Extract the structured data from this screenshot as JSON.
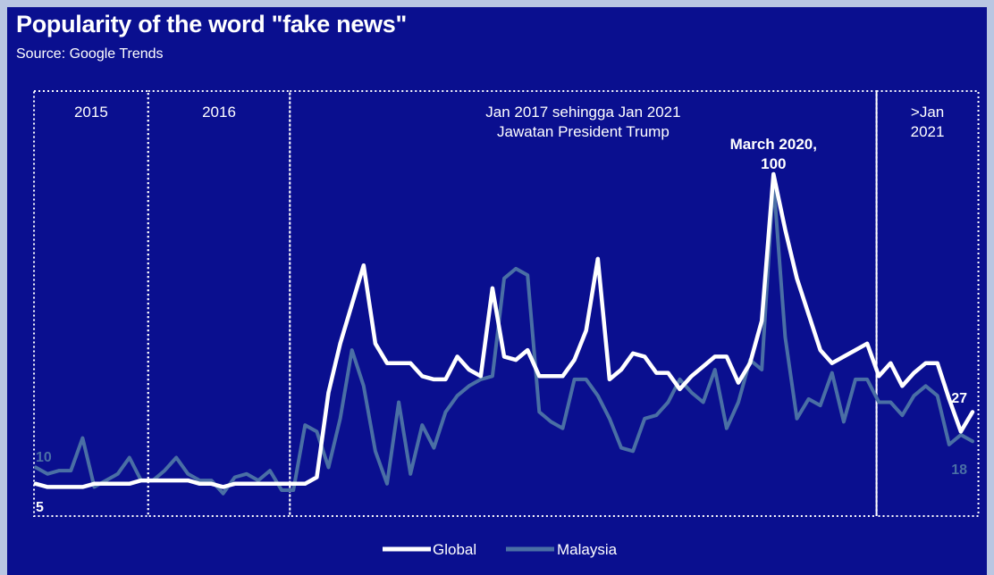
{
  "title": "Popularity of the word \"fake news\"",
  "subtitle": "Source: Google Trends",
  "colors": {
    "background": "#0a0f8f",
    "outer": "#b9c6e2",
    "global": "#ffffff",
    "malaysia": "#4a6fa5"
  },
  "periods": [
    {
      "lines": [
        "2015"
      ]
    },
    {
      "lines": [
        "2016"
      ]
    },
    {
      "lines": [
        "Jan 2017 sehingga Jan 2021",
        "Jawatan President Trump"
      ]
    },
    {
      "lines": [
        ">Jan",
        "2021"
      ]
    }
  ],
  "annotation": {
    "lines": [
      "March 2020,",
      "100"
    ]
  },
  "value_labels": {
    "global_start": "5",
    "malaysia_start": "10",
    "global_end": "27",
    "malaysia_end": "18"
  },
  "legend": {
    "global": "Global",
    "malaysia": "Malaysia"
  },
  "chart_data": {
    "type": "line",
    "title": "Popularity of the word \"fake news\"",
    "subtitle": "Source: Google Trends",
    "x_start": "2015-01",
    "x_end": "2021-07",
    "x_interval": "monthly",
    "ylim": [
      0,
      100
    ],
    "grid": false,
    "legend_position": "bottom",
    "series": [
      {
        "name": "Global",
        "values": [
          5,
          4,
          4,
          4,
          4,
          5,
          5,
          5,
          5,
          6,
          6,
          6,
          6,
          6,
          5,
          5,
          4,
          5,
          5,
          5,
          5,
          5,
          5,
          5,
          7,
          33,
          48,
          60,
          72,
          48,
          42,
          42,
          42,
          38,
          37,
          37,
          44,
          40,
          38,
          65,
          44,
          43,
          46,
          38,
          38,
          38,
          43,
          52,
          74,
          37,
          40,
          45,
          44,
          39,
          39,
          34,
          38,
          41,
          44,
          44,
          36,
          42,
          55,
          100,
          83,
          68,
          57,
          46,
          42,
          44,
          46,
          48,
          38,
          42,
          35,
          39,
          42,
          42,
          31,
          21,
          27
        ]
      },
      {
        "name": "Malaysia",
        "values": [
          10,
          8,
          9,
          9,
          19,
          4,
          6,
          8,
          13,
          6,
          6,
          9,
          13,
          8,
          6,
          6,
          2,
          7,
          8,
          6,
          9,
          3,
          3,
          23,
          21,
          10,
          25,
          46,
          35,
          15,
          5,
          30,
          8,
          23,
          16,
          27,
          32,
          35,
          37,
          38,
          68,
          71,
          69,
          27,
          24,
          22,
          37,
          37,
          32,
          25,
          16,
          15,
          25,
          26,
          30,
          37,
          33,
          30,
          40,
          22,
          30,
          43,
          40,
          98,
          50,
          25,
          31,
          29,
          39,
          24,
          37,
          37,
          30,
          30,
          26,
          32,
          35,
          32,
          17,
          20,
          18
        ]
      }
    ]
  }
}
